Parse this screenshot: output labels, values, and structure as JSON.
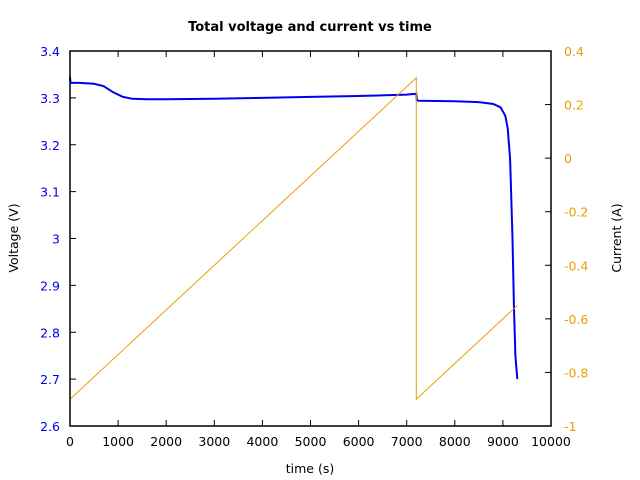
{
  "chart_data": {
    "type": "line",
    "title": "Total voltage and current vs time",
    "xlabel": "time (s)",
    "ylabel": "Voltage (V)",
    "y2label": "Current (A)",
    "xlim": [
      0,
      10000
    ],
    "ylim": [
      2.6,
      3.4
    ],
    "y2lim": [
      -1,
      0.4
    ],
    "x_ticks": [
      "0",
      "1000",
      "2000",
      "3000",
      "4000",
      "5000",
      "6000",
      "7000",
      "8000",
      "9000",
      "10000"
    ],
    "y_ticks": [
      "2.6",
      "2.7",
      "2.8",
      "2.9",
      "3",
      "3.1",
      "3.2",
      "3.3",
      "3.4"
    ],
    "y2_ticks": [
      "-1",
      "-0.8",
      "-0.6",
      "-0.4",
      "-0.2",
      "0",
      "0.2",
      "0.4"
    ],
    "grid": false,
    "legend": null,
    "colors": {
      "voltage": "#0000ee",
      "current": "#e8a000"
    },
    "series": [
      {
        "name": "Voltage",
        "axis": "left",
        "x": [
          0,
          10,
          200,
          500,
          700,
          900,
          1100,
          1300,
          1600,
          2000,
          3000,
          4000,
          5000,
          6000,
          7000,
          7200,
          7210,
          7250,
          8000,
          8500,
          8800,
          8950,
          9050,
          9100,
          9150,
          9200,
          9230,
          9260,
          9300
        ],
        "values": [
          3.345,
          3.332,
          3.332,
          3.33,
          3.325,
          3.312,
          3.302,
          3.298,
          3.297,
          3.297,
          3.298,
          3.3,
          3.302,
          3.304,
          3.307,
          3.309,
          3.295,
          3.294,
          3.293,
          3.291,
          3.287,
          3.28,
          3.262,
          3.235,
          3.17,
          3.0,
          2.85,
          2.75,
          2.7
        ]
      },
      {
        "name": "Current",
        "axis": "right",
        "x": [
          0,
          7200,
          7200,
          9300
        ],
        "values": [
          -0.9,
          0.3,
          -0.9,
          -0.55
        ]
      }
    ]
  }
}
